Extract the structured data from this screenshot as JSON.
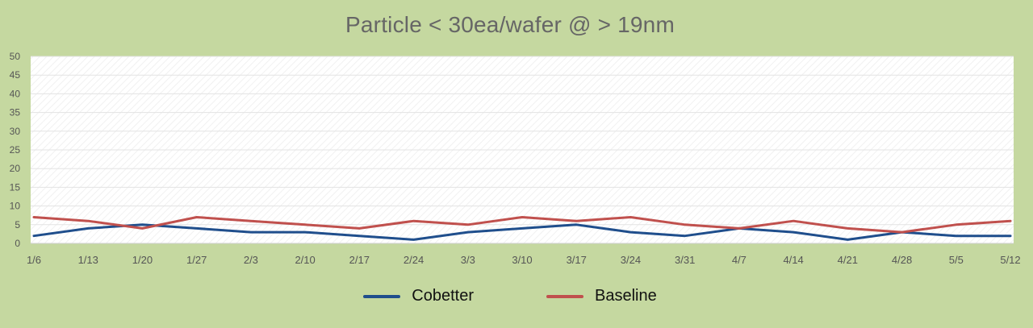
{
  "chart_data": {
    "type": "line",
    "title": "Particle < 30ea/wafer @ > 19nm",
    "xlabel": "",
    "ylabel": "",
    "categories": [
      "1/6",
      "1/13",
      "1/20",
      "1/27",
      "2/3",
      "2/10",
      "2/17",
      "2/24",
      "3/3",
      "3/10",
      "3/17",
      "3/24",
      "3/31",
      "4/7",
      "4/14",
      "4/21",
      "4/28",
      "5/5",
      "5/12"
    ],
    "ylim": [
      0,
      50
    ],
    "yticks": [
      0,
      5,
      10,
      15,
      20,
      25,
      30,
      35,
      40,
      45,
      50
    ],
    "grid": true,
    "legend_position": "bottom",
    "series": [
      {
        "name": "Cobetter",
        "color": "#1f4e8c",
        "values": [
          2,
          4,
          5,
          4,
          3,
          3,
          2,
          1,
          3,
          4,
          5,
          3,
          2,
          4,
          3,
          1,
          3,
          2,
          2
        ]
      },
      {
        "name": "Baseline",
        "color": "#c0504d",
        "values": [
          7,
          6,
          4,
          7,
          6,
          5,
          4,
          6,
          5,
          7,
          6,
          7,
          5,
          4,
          6,
          4,
          3,
          5,
          6
        ]
      }
    ]
  }
}
